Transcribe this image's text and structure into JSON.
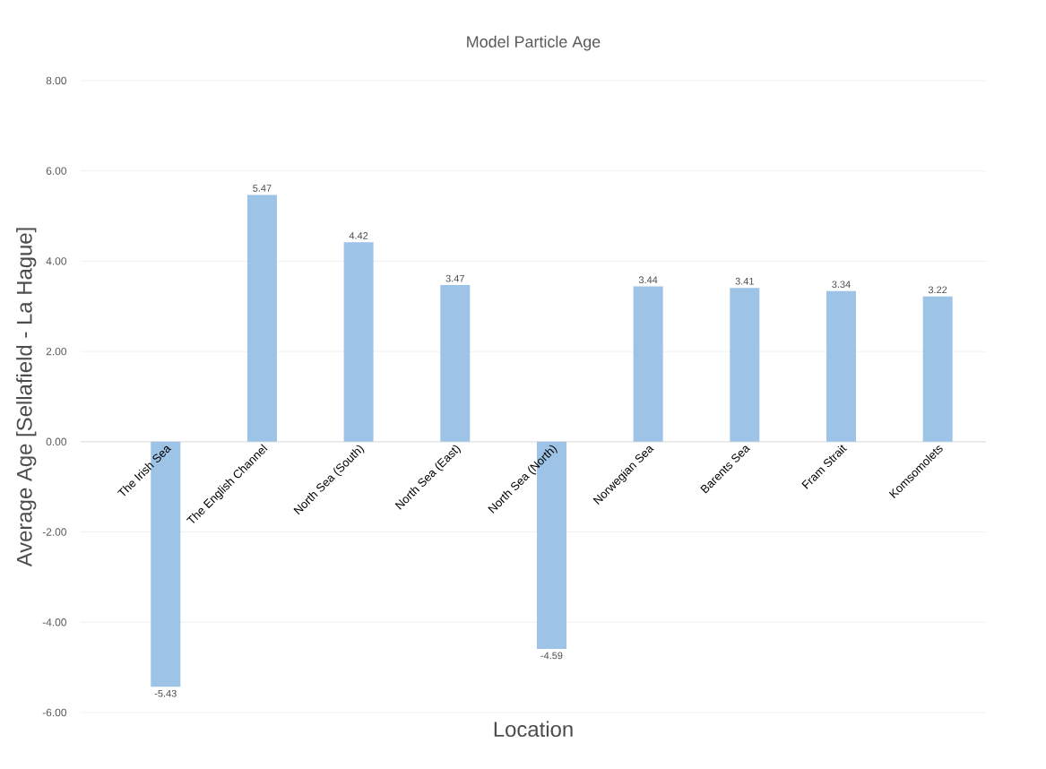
{
  "chart_data": {
    "type": "bar",
    "title": "Model Particle Age",
    "xlabel": "Location",
    "ylabel": "Average Age [Sellafield - La Hague]",
    "categories": [
      "The Irish Sea",
      "The English Channel",
      "North Sea (South)",
      "North Sea (East)",
      "North Sea (North)",
      "Norwegian Sea",
      "Barents Sea",
      "Fram Strait",
      "Komsomolets"
    ],
    "values": [
      -5.43,
      5.47,
      4.42,
      3.47,
      -4.59,
      3.44,
      3.41,
      3.34,
      3.22
    ],
    "color": "#9dc3e6",
    "data_labels": true,
    "grid": "y",
    "ylim": [
      -6,
      8
    ],
    "yticks": [
      {
        "value": -6,
        "label": "-6.00"
      },
      {
        "value": -4,
        "label": "-4.00"
      },
      {
        "value": -2,
        "label": "-2.00"
      },
      {
        "value": 0,
        "label": "0.00"
      },
      {
        "value": 2,
        "label": "2.00"
      },
      {
        "value": 4,
        "label": "4.00"
      },
      {
        "value": 6,
        "label": "6.00"
      },
      {
        "value": 8,
        "label": "8.00"
      }
    ]
  }
}
